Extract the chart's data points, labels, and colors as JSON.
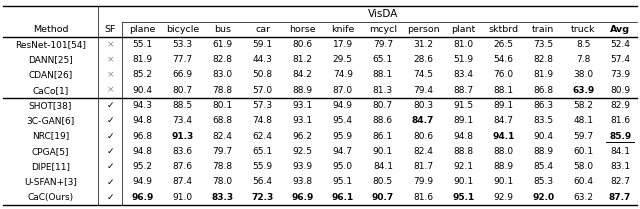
{
  "title": "VisDA",
  "col_headers": [
    "Method",
    "SF",
    "plane",
    "bicycle",
    "bus",
    "car",
    "horse",
    "knife",
    "mcycl",
    "person",
    "plant",
    "sktbrd",
    "train",
    "truck",
    "Avg"
  ],
  "rows": [
    {
      "method": "ResNet-101[54]",
      "sf": "×",
      "vals": [
        "55.1",
        "53.3",
        "61.9",
        "59.1",
        "80.6",
        "17.9",
        "79.7",
        "31.2",
        "81.0",
        "26.5",
        "73.5",
        "8.5",
        "52.4"
      ],
      "bold": [],
      "underline": []
    },
    {
      "method": "DANN[25]",
      "sf": "×",
      "vals": [
        "81.9",
        "77.7",
        "82.8",
        "44.3",
        "81.2",
        "29.5",
        "65.1",
        "28.6",
        "51.9",
        "54.6",
        "82.8",
        "7.8",
        "57.4"
      ],
      "bold": [],
      "underline": []
    },
    {
      "method": "CDAN[26]",
      "sf": "×",
      "vals": [
        "85.2",
        "66.9",
        "83.0",
        "50.8",
        "84.2",
        "74.9",
        "88.1",
        "74.5",
        "83.4",
        "76.0",
        "81.9",
        "38.0",
        "73.9"
      ],
      "bold": [],
      "underline": []
    },
    {
      "method": "CaCo[1]",
      "sf": "×",
      "vals": [
        "90.4",
        "80.7",
        "78.8",
        "57.0",
        "88.9",
        "87.0",
        "81.3",
        "79.4",
        "88.7",
        "88.1",
        "86.8",
        "63.9",
        "80.9"
      ],
      "bold": [
        11
      ],
      "underline": []
    },
    {
      "method": "SHOT[38]",
      "sf": "✓",
      "vals": [
        "94.3",
        "88.5",
        "80.1",
        "57.3",
        "93.1",
        "94.9",
        "80.7",
        "80.3",
        "91.5",
        "89.1",
        "86.3",
        "58.2",
        "82.9"
      ],
      "bold": [],
      "underline": []
    },
    {
      "method": "3C-GAN[6]",
      "sf": "✓",
      "vals": [
        "94.8",
        "73.4",
        "68.8",
        "74.8",
        "93.1",
        "95.4",
        "88.6",
        "84.7",
        "89.1",
        "84.7",
        "83.5",
        "48.1",
        "81.6"
      ],
      "bold": [
        7
      ],
      "underline": []
    },
    {
      "method": "NRC[19]",
      "sf": "✓",
      "vals": [
        "96.8",
        "91.3",
        "82.4",
        "62.4",
        "96.2",
        "95.9",
        "86.1",
        "80.6",
        "94.8",
        "94.1",
        "90.4",
        "59.7",
        "85.9"
      ],
      "bold": [
        1,
        9,
        12
      ],
      "underline": [
        12
      ]
    },
    {
      "method": "CPGA[5]",
      "sf": "✓",
      "vals": [
        "94.8",
        "83.6",
        "79.7",
        "65.1",
        "92.5",
        "94.7",
        "90.1",
        "82.4",
        "88.8",
        "88.0",
        "88.9",
        "60.1",
        "84.1"
      ],
      "bold": [],
      "underline": []
    },
    {
      "method": "DIPE[11]",
      "sf": "✓",
      "vals": [
        "95.2",
        "87.6",
        "78.8",
        "55.9",
        "93.9",
        "95.0",
        "84.1",
        "81.7",
        "92.1",
        "88.9",
        "85.4",
        "58.0",
        "83.1"
      ],
      "bold": [],
      "underline": []
    },
    {
      "method": "U-SFAN+[3]",
      "sf": "✓",
      "vals": [
        "94.9",
        "87.4",
        "78.0",
        "56.4",
        "93.8",
        "95.1",
        "80.5",
        "79.9",
        "90.1",
        "90.1",
        "85.3",
        "60.4",
        "82.7"
      ],
      "bold": [],
      "underline": []
    },
    {
      "method": "CaC(Ours)",
      "sf": "✓",
      "vals": [
        "96.9",
        "91.0",
        "83.3",
        "72.3",
        "96.9",
        "96.1",
        "90.7",
        "81.6",
        "95.1",
        "92.9",
        "92.0",
        "63.2",
        "87.7"
      ],
      "bold": [
        0,
        2,
        3,
        4,
        5,
        6,
        8,
        10,
        12
      ],
      "underline": []
    }
  ],
  "figsize": [
    6.4,
    2.09
  ],
  "dpi": 100,
  "fs_title": 7.5,
  "fs_header": 6.8,
  "fs_data": 6.5
}
